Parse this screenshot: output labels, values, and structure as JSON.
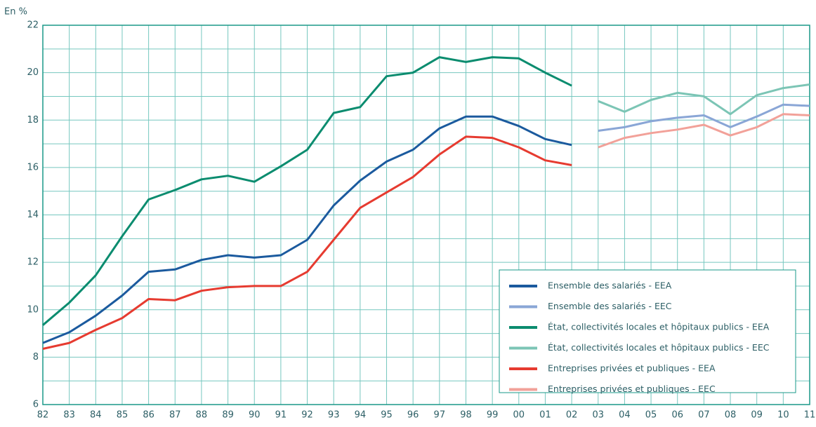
{
  "chart_data": {
    "type": "line",
    "y_unit_label": "En %",
    "categories": [
      "82",
      "83",
      "84",
      "85",
      "86",
      "87",
      "88",
      "89",
      "90",
      "91",
      "92",
      "93",
      "94",
      "95",
      "96",
      "97",
      "98",
      "99",
      "00",
      "01",
      "02",
      "03",
      "04",
      "05",
      "06",
      "07",
      "08",
      "09",
      "10",
      "11"
    ],
    "ylim": [
      6,
      22
    ],
    "yticks": [
      6,
      8,
      10,
      12,
      14,
      16,
      18,
      20,
      22
    ],
    "yticks_minor": [
      7,
      9,
      11,
      13,
      15,
      17,
      19,
      21
    ],
    "grid": true,
    "legend": "bottom-right",
    "series": [
      {
        "name": "Ensemble des salariés - EEA",
        "color": "#1b5a9e",
        "values": [
          8.6,
          9.05,
          9.75,
          10.6,
          11.6,
          11.7,
          12.1,
          12.3,
          12.2,
          12.3,
          12.95,
          14.4,
          15.45,
          16.25,
          16.75,
          17.65,
          18.15,
          18.15,
          17.75,
          17.2,
          16.95,
          null,
          null,
          null,
          null,
          null,
          null,
          null,
          null,
          null
        ]
      },
      {
        "name": "Ensemble des salariés - EEC",
        "color": "#8aa6d6",
        "values": [
          null,
          null,
          null,
          null,
          null,
          null,
          null,
          null,
          null,
          null,
          null,
          null,
          null,
          null,
          null,
          null,
          null,
          null,
          null,
          null,
          null,
          17.55,
          17.7,
          17.95,
          18.1,
          18.2,
          17.7,
          18.15,
          18.65,
          18.6
        ]
      },
      {
        "name": "État, collectivités locales et hôpitaux publics - EEA",
        "color": "#0b8c6f",
        "values": [
          9.35,
          10.3,
          11.45,
          13.1,
          14.65,
          15.05,
          15.5,
          15.65,
          15.4,
          16.05,
          16.75,
          18.3,
          18.55,
          19.85,
          20.0,
          20.65,
          20.45,
          20.65,
          20.6,
          20.0,
          19.45,
          null,
          null,
          null,
          null,
          null,
          null,
          null,
          null,
          null
        ]
      },
      {
        "name": "État, collectivités locales et hôpitaux publics - EEC",
        "color": "#7cc5b5",
        "values": [
          null,
          null,
          null,
          null,
          null,
          null,
          null,
          null,
          null,
          null,
          null,
          null,
          null,
          null,
          null,
          null,
          null,
          null,
          null,
          null,
          null,
          18.8,
          18.35,
          18.85,
          19.15,
          19.0,
          18.25,
          19.05,
          19.35,
          19.5
        ]
      },
      {
        "name": "Entreprises privées et publiques - EEA",
        "color": "#e63b30",
        "values": [
          8.35,
          8.6,
          9.15,
          9.65,
          10.45,
          10.4,
          10.8,
          10.95,
          11.0,
          11.0,
          11.6,
          12.95,
          14.3,
          14.95,
          15.6,
          16.55,
          17.3,
          17.25,
          16.85,
          16.3,
          16.1,
          null,
          null,
          null,
          null,
          null,
          null,
          null,
          null,
          null
        ]
      },
      {
        "name": "Entreprises privées et publiques - EEC",
        "color": "#f2a199",
        "values": [
          null,
          null,
          null,
          null,
          null,
          null,
          null,
          null,
          null,
          null,
          null,
          null,
          null,
          null,
          null,
          null,
          null,
          null,
          null,
          null,
          null,
          16.85,
          17.25,
          17.45,
          17.6,
          17.8,
          17.35,
          17.7,
          18.25,
          18.2
        ]
      }
    ]
  }
}
